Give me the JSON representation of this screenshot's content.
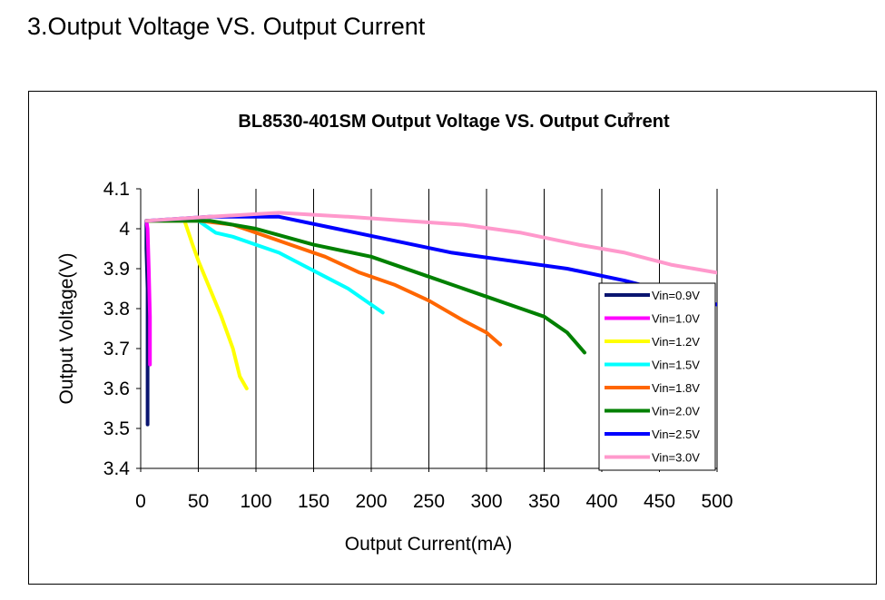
{
  "page": {
    "section_title": "3.Output Voltage VS. Output Current"
  },
  "chart_data": {
    "type": "line",
    "title": "BL8530-401SM Output Voltage VS. Output Current",
    "xlabel": "Output Current(mA)",
    "ylabel": "Output Voltage(V)",
    "xlim": [
      0,
      500
    ],
    "ylim": [
      3.4,
      4.1
    ],
    "xticks": [
      0,
      50,
      100,
      150,
      200,
      250,
      300,
      350,
      400,
      450,
      500
    ],
    "yticks": [
      3.4,
      3.5,
      3.6,
      3.7,
      3.8,
      3.9,
      4,
      4.1
    ],
    "ytick_labels": [
      "3.4",
      "3.5",
      "3.6",
      "3.7",
      "3.8",
      "3.9",
      "4",
      "4.1"
    ],
    "grid": "vertical",
    "legend": "bottom-right",
    "series": [
      {
        "name": "Vin=0.9V",
        "color": "#0a1570",
        "x": [
          5,
          5,
          6,
          6,
          6,
          6
        ],
        "y": [
          4.02,
          3.95,
          3.85,
          3.75,
          3.6,
          3.51
        ]
      },
      {
        "name": "Vin=1.0V",
        "color": "#ff00ff",
        "x": [
          5,
          6,
          7,
          8,
          8
        ],
        "y": [
          4.02,
          4.0,
          3.9,
          3.78,
          3.66
        ]
      },
      {
        "name": "Vin=1.2V",
        "color": "#ffff00",
        "x": [
          5,
          20,
          38,
          45,
          50,
          60,
          70,
          80,
          86,
          92
        ],
        "y": [
          4.02,
          4.02,
          4.02,
          3.96,
          3.92,
          3.85,
          3.78,
          3.7,
          3.63,
          3.6
        ]
      },
      {
        "name": "Vin=1.5V",
        "color": "#00ffff",
        "x": [
          5,
          30,
          50,
          65,
          80,
          100,
          120,
          140,
          160,
          180,
          200,
          210
        ],
        "y": [
          4.02,
          4.02,
          4.02,
          3.99,
          3.98,
          3.96,
          3.94,
          3.91,
          3.88,
          3.85,
          3.81,
          3.79
        ]
      },
      {
        "name": "Vin=1.8V",
        "color": "#ff6600",
        "x": [
          5,
          50,
          80,
          100,
          130,
          160,
          190,
          220,
          250,
          280,
          300,
          312
        ],
        "y": [
          4.02,
          4.02,
          4.01,
          3.99,
          3.96,
          3.93,
          3.89,
          3.86,
          3.82,
          3.77,
          3.74,
          3.71
        ]
      },
      {
        "name": "Vin=2.0V",
        "color": "#008000",
        "x": [
          5,
          60,
          100,
          150,
          200,
          250,
          300,
          330,
          350,
          370,
          385
        ],
        "y": [
          4.02,
          4.02,
          4.0,
          3.96,
          3.93,
          3.88,
          3.83,
          3.8,
          3.78,
          3.74,
          3.69
        ]
      },
      {
        "name": "Vin=2.5V",
        "color": "#0000ff",
        "x": [
          5,
          60,
          120,
          170,
          220,
          270,
          320,
          370,
          420,
          460,
          500
        ],
        "y": [
          4.02,
          4.03,
          4.03,
          4.0,
          3.97,
          3.94,
          3.92,
          3.9,
          3.87,
          3.84,
          3.81
        ]
      },
      {
        "name": "Vin=3.0V",
        "color": "#ff99cc",
        "x": [
          5,
          60,
          120,
          180,
          230,
          280,
          330,
          380,
          420,
          460,
          500
        ],
        "y": [
          4.02,
          4.03,
          4.04,
          4.03,
          4.02,
          4.01,
          3.99,
          3.96,
          3.94,
          3.91,
          3.89
        ]
      }
    ]
  }
}
